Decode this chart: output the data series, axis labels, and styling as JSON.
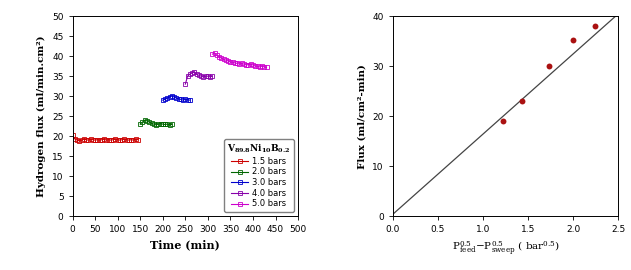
{
  "left": {
    "xlabel": "Time (min)",
    "ylabel": "Hydrogen flux (ml/min.cm²)",
    "xlim": [
      0,
      500
    ],
    "ylim": [
      0,
      50
    ],
    "xticks": [
      0,
      50,
      100,
      150,
      200,
      250,
      300,
      350,
      400,
      450,
      500
    ],
    "yticks": [
      0,
      5,
      10,
      15,
      20,
      25,
      30,
      35,
      40,
      45,
      50
    ],
    "series": [
      {
        "label": "1.5 bars",
        "color": "#cc0000",
        "x": [
          0,
          5,
          10,
          15,
          20,
          25,
          30,
          35,
          40,
          45,
          50,
          55,
          60,
          65,
          70,
          75,
          80,
          85,
          90,
          95,
          100,
          105,
          110,
          115,
          120,
          125,
          130,
          135,
          140,
          145
        ],
        "y": [
          20.2,
          19.3,
          19.0,
          18.8,
          19.0,
          19.2,
          19.1,
          19.0,
          19.2,
          19.1,
          19.0,
          19.1,
          19.0,
          19.1,
          19.2,
          19.0,
          19.1,
          19.0,
          19.1,
          19.2,
          19.1,
          19.0,
          19.1,
          19.2,
          19.1,
          19.0,
          19.1,
          19.0,
          19.2,
          19.1
        ]
      },
      {
        "label": "2.0 bars",
        "color": "#006600",
        "x": [
          150,
          155,
          160,
          165,
          170,
          175,
          180,
          185,
          190,
          195,
          200,
          205,
          210,
          215,
          220
        ],
        "y": [
          23.0,
          23.5,
          24.0,
          23.8,
          23.5,
          23.2,
          23.0,
          22.8,
          23.0,
          23.1,
          23.0,
          22.9,
          23.0,
          22.8,
          22.9
        ]
      },
      {
        "label": "3.0 bars",
        "color": "#0000cc",
        "x": [
          200,
          205,
          210,
          215,
          220,
          225,
          230,
          235,
          240,
          245,
          250,
          255,
          260
        ],
        "y": [
          29.0,
          29.2,
          29.5,
          29.8,
          30.0,
          29.8,
          29.5,
          29.3,
          29.2,
          29.0,
          29.2,
          29.1,
          29.0
        ]
      },
      {
        "label": "4.0 bars",
        "color": "#8800aa",
        "x": [
          250,
          255,
          260,
          265,
          270,
          275,
          280,
          285,
          290,
          295,
          300,
          305,
          310
        ],
        "y": [
          33.0,
          35.0,
          35.5,
          35.8,
          36.0,
          35.5,
          35.2,
          35.0,
          34.8,
          35.0,
          35.0,
          34.8,
          35.0
        ]
      },
      {
        "label": "5.0 bars",
        "color": "#cc00cc",
        "x": [
          310,
          315,
          320,
          325,
          330,
          335,
          340,
          345,
          350,
          355,
          360,
          365,
          370,
          375,
          380,
          385,
          390,
          395,
          400,
          405,
          410,
          415,
          420,
          425,
          430
        ],
        "y": [
          40.5,
          40.8,
          40.2,
          39.8,
          39.5,
          39.2,
          39.0,
          38.8,
          38.5,
          38.5,
          38.3,
          38.2,
          38.0,
          38.2,
          38.0,
          37.8,
          37.9,
          38.0,
          37.8,
          37.5,
          37.5,
          37.3,
          37.5,
          37.3,
          37.2
        ]
      }
    ]
  },
  "right": {
    "ylabel": "Flux (ml/cm²-min)",
    "xlim": [
      0.0,
      2.5
    ],
    "ylim": [
      0,
      40
    ],
    "xticks": [
      0.0,
      0.5,
      1.0,
      1.5,
      2.0,
      2.5
    ],
    "yticks": [
      0,
      10,
      20,
      30,
      40
    ],
    "scatter_x": [
      1.22,
      1.43,
      1.73,
      2.0,
      2.24
    ],
    "scatter_y": [
      19.0,
      23.0,
      30.0,
      35.2,
      38.0
    ],
    "scatter_color": "#aa1111",
    "fit_x": [
      0.0,
      2.5
    ],
    "fit_y": [
      0.35,
      40.5
    ],
    "fit_color": "#444444"
  }
}
